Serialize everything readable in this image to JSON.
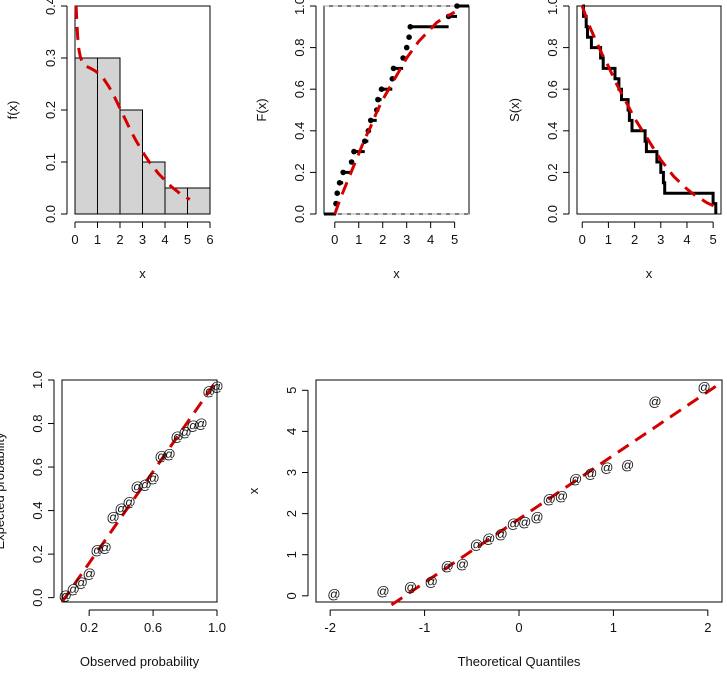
{
  "chart_data": [
    {
      "type": "histogram",
      "xlabel": "x",
      "ylabel": "f(x)",
      "xlim": [
        0,
        6
      ],
      "ylim": [
        0,
        0.4
      ],
      "xticks": [
        "0",
        "1",
        "2",
        "3",
        "4",
        "5",
        "6"
      ],
      "yticks": [
        "0.0",
        "0.1",
        "0.2",
        "0.3",
        "0.4"
      ],
      "bins": [
        {
          "from": 0,
          "to": 1,
          "density": 0.3
        },
        {
          "from": 1,
          "to": 2,
          "density": 0.3
        },
        {
          "from": 2,
          "to": 3,
          "density": 0.2
        },
        {
          "from": 3,
          "to": 4,
          "density": 0.1
        },
        {
          "from": 4,
          "to": 5,
          "density": 0.05
        },
        {
          "from": 5,
          "to": 6,
          "density": 0.05
        }
      ],
      "fitted_density": {
        "x": [
          0.05,
          0.08,
          0.12,
          0.18,
          0.25,
          0.35,
          0.5,
          0.7,
          0.9,
          1.1,
          1.3,
          1.5,
          1.7,
          1.9,
          2.1,
          2.3,
          2.5,
          2.7,
          2.9,
          3.1,
          3.3,
          3.5,
          3.7,
          3.9,
          4.1,
          4.3,
          4.5,
          4.7,
          4.9,
          5.1
        ],
        "y": [
          0.4,
          0.37,
          0.34,
          0.315,
          0.3,
          0.29,
          0.284,
          0.28,
          0.275,
          0.268,
          0.258,
          0.245,
          0.23,
          0.212,
          0.194,
          0.176,
          0.158,
          0.142,
          0.127,
          0.113,
          0.1,
          0.089,
          0.078,
          0.069,
          0.06,
          0.052,
          0.045,
          0.038,
          0.033,
          0.028
        ]
      }
    },
    {
      "type": "ecdf",
      "xlabel": "x",
      "ylabel": "F(x)",
      "xlim": [
        -0.45,
        5.6
      ],
      "ylim": [
        0,
        1
      ],
      "xticks": [
        "0",
        "1",
        "2",
        "3",
        "4",
        "5"
      ],
      "yticks": [
        "0.0",
        "0.2",
        "0.4",
        "0.6",
        "0.8",
        "1.0"
      ],
      "steps": [
        {
          "x": 0.05,
          "y": 0.05
        },
        {
          "x": 0.1,
          "y": 0.1
        },
        {
          "x": 0.2,
          "y": 0.15
        },
        {
          "x": 0.35,
          "y": 0.2
        },
        {
          "x": 0.7,
          "y": 0.25
        },
        {
          "x": 0.8,
          "y": 0.3
        },
        {
          "x": 1.25,
          "y": 0.35
        },
        {
          "x": 1.4,
          "y": 0.4
        },
        {
          "x": 1.5,
          "y": 0.45
        },
        {
          "x": 1.75,
          "y": 0.5
        },
        {
          "x": 1.8,
          "y": 0.55
        },
        {
          "x": 1.95,
          "y": 0.6
        },
        {
          "x": 2.4,
          "y": 0.65
        },
        {
          "x": 2.45,
          "y": 0.7
        },
        {
          "x": 2.85,
          "y": 0.75
        },
        {
          "x": 3.0,
          "y": 0.8
        },
        {
          "x": 3.1,
          "y": 0.85
        },
        {
          "x": 3.15,
          "y": 0.9
        },
        {
          "x": 4.75,
          "y": 0.95
        },
        {
          "x": 5.1,
          "y": 1.0
        }
      ],
      "fitted_cdf": {
        "x": [
          0.0,
          0.25,
          0.5,
          0.75,
          1.0,
          1.25,
          1.5,
          1.75,
          2.0,
          2.25,
          2.5,
          2.75,
          3.0,
          3.25,
          3.5,
          3.75,
          4.0,
          4.25,
          4.5,
          4.75,
          5.0
        ],
        "y": [
          0.0,
          0.08,
          0.15,
          0.22,
          0.29,
          0.36,
          0.42,
          0.49,
          0.55,
          0.6,
          0.65,
          0.7,
          0.75,
          0.79,
          0.83,
          0.86,
          0.89,
          0.92,
          0.94,
          0.955,
          0.97
        ]
      }
    },
    {
      "type": "survival",
      "xlabel": "x",
      "ylabel": "S(x)",
      "xlim": [
        -0.2,
        5.3
      ],
      "ylim": [
        0,
        1
      ],
      "xticks": [
        "0",
        "1",
        "2",
        "3",
        "4",
        "5"
      ],
      "yticks": [
        "0.0",
        "0.2",
        "0.4",
        "0.6",
        "0.8",
        "1.0"
      ],
      "steps": [
        {
          "x": 0.05,
          "y": 0.95
        },
        {
          "x": 0.15,
          "y": 0.9
        },
        {
          "x": 0.2,
          "y": 0.85
        },
        {
          "x": 0.35,
          "y": 0.8
        },
        {
          "x": 0.7,
          "y": 0.75
        },
        {
          "x": 0.8,
          "y": 0.7
        },
        {
          "x": 1.25,
          "y": 0.65
        },
        {
          "x": 1.4,
          "y": 0.6
        },
        {
          "x": 1.5,
          "y": 0.55
        },
        {
          "x": 1.75,
          "y": 0.5
        },
        {
          "x": 1.8,
          "y": 0.45
        },
        {
          "x": 1.9,
          "y": 0.4
        },
        {
          "x": 2.4,
          "y": 0.35
        },
        {
          "x": 2.45,
          "y": 0.3
        },
        {
          "x": 2.85,
          "y": 0.25
        },
        {
          "x": 3.0,
          "y": 0.2
        },
        {
          "x": 3.1,
          "y": 0.15
        },
        {
          "x": 3.15,
          "y": 0.1
        },
        {
          "x": 5.0,
          "y": 0.05
        },
        {
          "x": 5.1,
          "y": 0.0
        }
      ],
      "fitted_survival": {
        "x": [
          0.0,
          0.25,
          0.5,
          0.75,
          1.0,
          1.25,
          1.5,
          1.75,
          2.0,
          2.25,
          2.5,
          2.75,
          3.0,
          3.25,
          3.5,
          3.75,
          4.0,
          4.25,
          4.5,
          4.75,
          5.0,
          5.2
        ],
        "y": [
          1.0,
          0.91,
          0.84,
          0.77,
          0.71,
          0.64,
          0.58,
          0.52,
          0.46,
          0.41,
          0.36,
          0.31,
          0.26,
          0.22,
          0.18,
          0.15,
          0.12,
          0.095,
          0.075,
          0.055,
          0.04,
          0.025
        ]
      }
    },
    {
      "type": "scatter",
      "xlabel": "Observed probability",
      "ylabel": "Expected probability",
      "xlim": [
        0.03,
        1.0
      ],
      "ylim": [
        -0.02,
        1.0
      ],
      "xticks": [
        "0.2",
        "0.6",
        "1.0"
      ],
      "yticks": [
        "0.0",
        "0.2",
        "0.4",
        "0.6",
        "0.8",
        "1.0"
      ],
      "marker": "@",
      "points": [
        [
          0.05,
          0.01
        ],
        [
          0.1,
          0.04
        ],
        [
          0.15,
          0.07
        ],
        [
          0.2,
          0.11
        ],
        [
          0.25,
          0.22
        ],
        [
          0.3,
          0.23
        ],
        [
          0.35,
          0.37
        ],
        [
          0.4,
          0.41
        ],
        [
          0.45,
          0.44
        ],
        [
          0.5,
          0.51
        ],
        [
          0.55,
          0.52
        ],
        [
          0.6,
          0.55
        ],
        [
          0.65,
          0.65
        ],
        [
          0.7,
          0.66
        ],
        [
          0.75,
          0.74
        ],
        [
          0.8,
          0.76
        ],
        [
          0.85,
          0.79
        ],
        [
          0.9,
          0.8
        ],
        [
          0.95,
          0.95
        ],
        [
          1.0,
          0.97
        ]
      ],
      "reference_line": {
        "x": [
          0.03,
          1.0
        ],
        "y": [
          -0.02,
          1.0
        ]
      }
    },
    {
      "type": "scatter",
      "xlabel": "Theoretical Quantiles",
      "ylabel": "x",
      "xlim": [
        -2.15,
        2.15
      ],
      "ylim": [
        -0.15,
        5.25
      ],
      "xticks": [
        "-2",
        "-1",
        "0",
        "1",
        "2"
      ],
      "yticks": [
        "0",
        "1",
        "2",
        "3",
        "4",
        "5"
      ],
      "marker": "@",
      "points": [
        [
          -1.96,
          0.05
        ],
        [
          -1.44,
          0.12
        ],
        [
          -1.15,
          0.21
        ],
        [
          -0.93,
          0.35
        ],
        [
          -0.76,
          0.73
        ],
        [
          -0.6,
          0.78
        ],
        [
          -0.45,
          1.25
        ],
        [
          -0.32,
          1.39
        ],
        [
          -0.19,
          1.5
        ],
        [
          -0.06,
          1.76
        ],
        [
          0.06,
          1.79
        ],
        [
          0.19,
          1.92
        ],
        [
          0.32,
          2.36
        ],
        [
          0.45,
          2.43
        ],
        [
          0.6,
          2.84
        ],
        [
          0.76,
          2.98
        ],
        [
          0.93,
          3.12
        ],
        [
          1.15,
          3.18
        ],
        [
          1.44,
          4.73
        ],
        [
          1.96,
          5.08
        ]
      ],
      "reference_line": {
        "x": [
          -1.35,
          2.15
        ],
        "y": [
          -0.22,
          5.2
        ]
      }
    }
  ]
}
